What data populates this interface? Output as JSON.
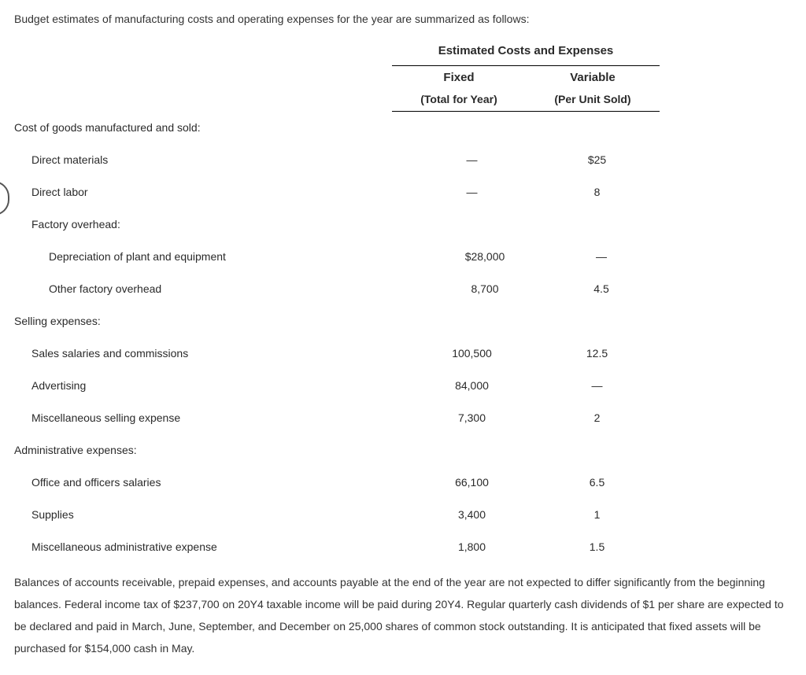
{
  "intro_text": "Budget estimates of manufacturing costs and operating expenses for the year are summarized as follows:",
  "header": {
    "group_title": "Estimated Costs and Expenses",
    "col1_l1": "Fixed",
    "col1_l2": "(Total for Year)",
    "col2_l1": "Variable",
    "col2_l2": "(Per Unit Sold)"
  },
  "sections": [
    {
      "type": "section",
      "label": "Cost of goods manufactured and sold:"
    },
    {
      "type": "row",
      "indent": 1,
      "label": "Direct materials",
      "fixed": "—",
      "variable": "$25"
    },
    {
      "type": "row",
      "indent": 1,
      "label": "Direct labor",
      "fixed": "—",
      "variable": "8"
    },
    {
      "type": "sub",
      "indent": 1,
      "label": "Factory overhead:"
    },
    {
      "type": "row",
      "indent": 2,
      "label": "Depreciation of plant and equipment",
      "fixed": "$28,000",
      "variable": "—"
    },
    {
      "type": "row",
      "indent": 2,
      "label": "Other factory overhead",
      "fixed": "8,700",
      "variable": "4.5"
    },
    {
      "type": "section",
      "label": "Selling expenses:"
    },
    {
      "type": "row",
      "indent": 1,
      "label": "Sales salaries and commissions",
      "fixed": "100,500",
      "variable": "12.5"
    },
    {
      "type": "row",
      "indent": 1,
      "label": "Advertising",
      "fixed": "84,000",
      "variable": "—"
    },
    {
      "type": "row",
      "indent": 1,
      "label": "Miscellaneous selling expense",
      "fixed": "7,300",
      "variable": "2"
    },
    {
      "type": "section",
      "label": "Administrative expenses:"
    },
    {
      "type": "row",
      "indent": 1,
      "label": "Office and officers salaries",
      "fixed": "66,100",
      "variable": "6.5"
    },
    {
      "type": "row",
      "indent": 1,
      "label": "Supplies",
      "fixed": "3,400",
      "variable": "1"
    },
    {
      "type": "row",
      "indent": 1,
      "label": "Miscellaneous administrative expense",
      "fixed": "1,800",
      "variable": "1.5"
    }
  ],
  "outro_text": "Balances of accounts receivable, prepaid expenses, and accounts payable at the end of the year are not expected to differ significantly from the beginning balances. Federal income tax of $237,700 on 20Y4 taxable income will be paid during 20Y4. Regular quarterly cash dividends of $1 per share are expected to be declared and paid in March, June, September, and December on 25,000 shares of common stock outstanding. It is anticipated that fixed assets will be purchased for $154,000 cash in May."
}
